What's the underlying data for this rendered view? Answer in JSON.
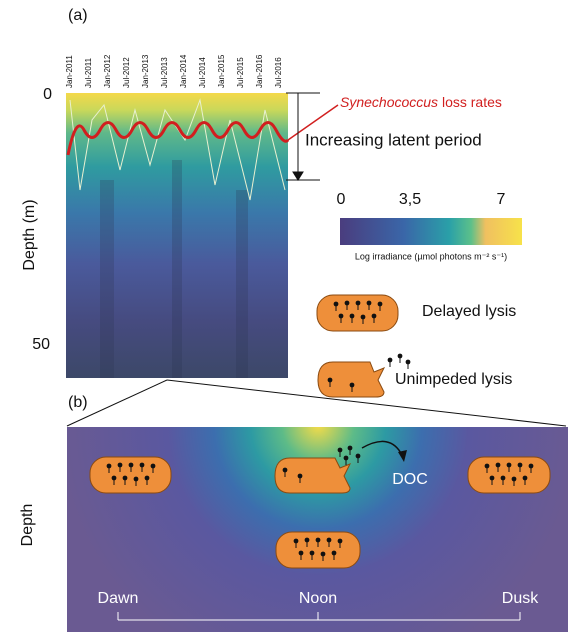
{
  "panel_a": {
    "label": "(a)",
    "x_labels": [
      "Jan-2011",
      "Jul-2011",
      "Jan-2012",
      "Jul-2012",
      "Jan-2013",
      "Jul-2013",
      "Jan-2014",
      "Jul-2014",
      "Jan-2015",
      "Jul-2015",
      "Jan-2016",
      "Jul-2016"
    ],
    "y_axis_label": "Depth (m)",
    "y_ticks": [
      "0",
      "50"
    ],
    "loss_rates_species": "Synechococcus",
    "loss_rates_text": "loss rates",
    "latent_period": "Increasing latent period",
    "colorbar": {
      "ticks": [
        "0",
        "3,5",
        "7"
      ],
      "label": "Log irradiance (µmol photons m⁻² s⁻¹)"
    },
    "legend": {
      "delayed": "Delayed lysis",
      "unimpeded": "Unimpeded lysis"
    }
  },
  "panel_b": {
    "label": "(b)",
    "y_axis_label": "Depth",
    "doc": "DOC",
    "times": [
      "Dawn",
      "Noon",
      "Dusk"
    ]
  }
}
